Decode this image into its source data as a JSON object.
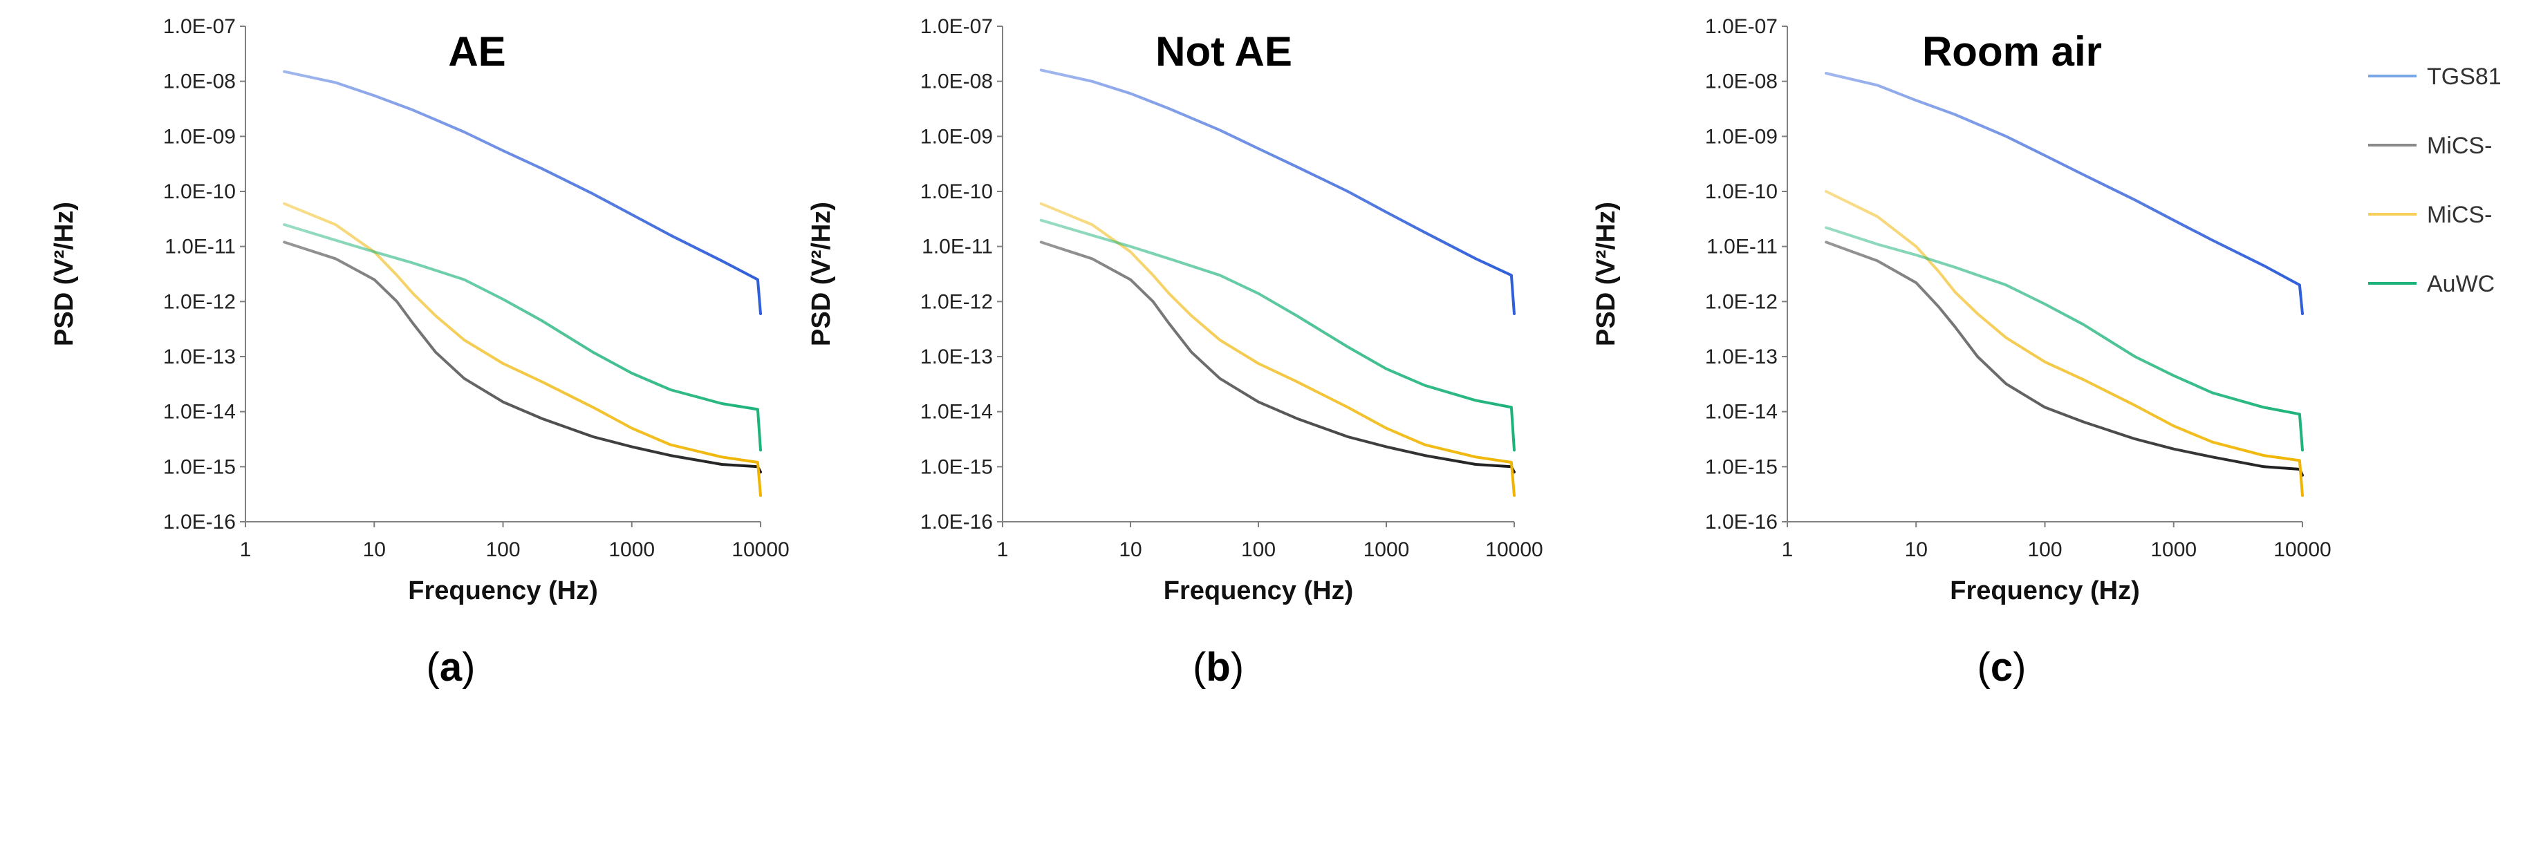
{
  "chart_data": [
    {
      "type": "line",
      "title": "AE",
      "caption": "a",
      "xlabel": "Frequency (Hz)",
      "ylabel": "PSD (V²/Hz)",
      "x_scale": "log",
      "y_scale": "log",
      "xlim": [
        1,
        10000
      ],
      "ylim": [
        1e-16,
        1e-07
      ],
      "x_ticks": [
        "1",
        "10",
        "100",
        "1000",
        "10000"
      ],
      "y_ticks": [
        "1.0E-16",
        "1.0E-15",
        "1.0E-14",
        "1.0E-13",
        "1.0E-12",
        "1.0E-11",
        "1.0E-10",
        "1.0E-09",
        "1.0E-08",
        "1.0E-07"
      ],
      "grid": false,
      "series": [
        {
          "name": "TGS81",
          "color": "#2f5fd9",
          "x": [
            2,
            5,
            10,
            20,
            50,
            100,
            200,
            500,
            1000,
            2000,
            5000,
            9500,
            10000
          ],
          "y": [
            1.5e-08,
            9.5e-09,
            5.5e-09,
            3e-09,
            1.2e-09,
            5.5e-10,
            2.6e-10,
            9e-11,
            3.8e-11,
            1.6e-11,
            5.5e-12,
            2.5e-12,
            6e-13
          ]
        },
        {
          "name": "MiCS-",
          "color": "#1a1a1a",
          "x": [
            2,
            5,
            10,
            15,
            20,
            30,
            50,
            100,
            200,
            500,
            1000,
            2000,
            5000,
            9500,
            10000
          ],
          "y": [
            1.2e-11,
            6e-12,
            2.5e-12,
            1e-12,
            4e-13,
            1.2e-13,
            4e-14,
            1.5e-14,
            7.5e-15,
            3.5e-15,
            2.3e-15,
            1.6e-15,
            1.1e-15,
            1e-15,
            8e-16
          ]
        },
        {
          "name": "MiCS-",
          "color": "#f0b400",
          "x": [
            2,
            5,
            10,
            15,
            20,
            30,
            50,
            100,
            200,
            500,
            1000,
            2000,
            5000,
            9500,
            10000
          ],
          "y": [
            6e-11,
            2.5e-11,
            8e-12,
            3e-12,
            1.4e-12,
            5.5e-13,
            2e-13,
            7.5e-14,
            3.5e-14,
            1.2e-14,
            5e-15,
            2.5e-15,
            1.5e-15,
            1.2e-15,
            3e-16
          ]
        },
        {
          "name": "AuWC",
          "color": "#1db37a",
          "x": [
            2,
            5,
            10,
            20,
            50,
            100,
            200,
            500,
            1000,
            2000,
            5000,
            9500,
            10000
          ],
          "y": [
            2.5e-11,
            1.3e-11,
            8e-12,
            5e-12,
            2.5e-12,
            1.1e-12,
            4.5e-13,
            1.2e-13,
            5e-14,
            2.5e-14,
            1.4e-14,
            1.1e-14,
            2e-15
          ]
        }
      ]
    },
    {
      "type": "line",
      "title": "Not AE",
      "caption": "b",
      "xlabel": "Frequency (Hz)",
      "ylabel": "PSD (V²/Hz)",
      "x_scale": "log",
      "y_scale": "log",
      "xlim": [
        1,
        10000
      ],
      "ylim": [
        1e-16,
        1e-07
      ],
      "x_ticks": [
        "1",
        "10",
        "100",
        "1000",
        "10000"
      ],
      "y_ticks": [
        "1.0E-16",
        "1.0E-15",
        "1.0E-14",
        "1.0E-13",
        "1.0E-12",
        "1.0E-11",
        "1.0E-10",
        "1.0E-09",
        "1.0E-08",
        "1.0E-07"
      ],
      "grid": false,
      "series": [
        {
          "name": "TGS81",
          "color": "#2f5fd9",
          "x": [
            2,
            5,
            10,
            20,
            50,
            100,
            200,
            500,
            1000,
            2000,
            5000,
            9500,
            10000
          ],
          "y": [
            1.6e-08,
            1e-08,
            6e-09,
            3.2e-09,
            1.3e-09,
            6e-10,
            2.8e-10,
            1e-10,
            4.2e-11,
            1.8e-11,
            6e-12,
            3e-12,
            6e-13
          ]
        },
        {
          "name": "MiCS-",
          "color": "#1a1a1a",
          "x": [
            2,
            5,
            10,
            15,
            20,
            30,
            50,
            100,
            200,
            500,
            1000,
            2000,
            5000,
            9500,
            10000
          ],
          "y": [
            1.2e-11,
            6e-12,
            2.5e-12,
            1e-12,
            4e-13,
            1.2e-13,
            4e-14,
            1.5e-14,
            7.5e-15,
            3.5e-15,
            2.3e-15,
            1.6e-15,
            1.1e-15,
            1e-15,
            8e-16
          ]
        },
        {
          "name": "MiCS-",
          "color": "#f0b400",
          "x": [
            2,
            5,
            10,
            15,
            20,
            30,
            50,
            100,
            200,
            500,
            1000,
            2000,
            5000,
            9500,
            10000
          ],
          "y": [
            6e-11,
            2.5e-11,
            8e-12,
            3e-12,
            1.4e-12,
            5.5e-13,
            2e-13,
            7.5e-14,
            3.5e-14,
            1.2e-14,
            5e-15,
            2.5e-15,
            1.5e-15,
            1.2e-15,
            3e-16
          ]
        },
        {
          "name": "AuWC",
          "color": "#1db37a",
          "x": [
            2,
            5,
            10,
            20,
            50,
            100,
            200,
            500,
            1000,
            2000,
            5000,
            9500,
            10000
          ],
          "y": [
            3e-11,
            1.6e-11,
            1e-11,
            6e-12,
            3e-12,
            1.4e-12,
            5.5e-13,
            1.5e-13,
            6e-14,
            3e-14,
            1.6e-14,
            1.2e-14,
            2e-15
          ]
        }
      ]
    },
    {
      "type": "line",
      "title": "Room air",
      "caption": "c",
      "xlabel": "Frequency (Hz)",
      "ylabel": "PSD (V²/Hz)",
      "x_scale": "log",
      "y_scale": "log",
      "xlim": [
        1,
        10000
      ],
      "ylim": [
        1e-16,
        1e-07
      ],
      "x_ticks": [
        "1",
        "10",
        "100",
        "1000",
        "10000"
      ],
      "y_ticks": [
        "1.0E-16",
        "1.0E-15",
        "1.0E-14",
        "1.0E-13",
        "1.0E-12",
        "1.0E-11",
        "1.0E-10",
        "1.0E-09",
        "1.0E-08",
        "1.0E-07"
      ],
      "grid": false,
      "series": [
        {
          "name": "TGS81",
          "color": "#2f5fd9",
          "x": [
            2,
            5,
            10,
            20,
            50,
            100,
            200,
            500,
            1000,
            2000,
            5000,
            9500,
            10000
          ],
          "y": [
            1.4e-08,
            8.5e-09,
            4.5e-09,
            2.5e-09,
            1e-09,
            4.5e-10,
            2e-10,
            7e-11,
            3e-11,
            1.3e-11,
            4.5e-12,
            2e-12,
            6e-13
          ]
        },
        {
          "name": "MiCS-",
          "color": "#1a1a1a",
          "x": [
            2,
            5,
            10,
            15,
            20,
            30,
            50,
            100,
            200,
            500,
            1000,
            2000,
            5000,
            9500,
            10000
          ],
          "y": [
            1.2e-11,
            5.5e-12,
            2.2e-12,
            8e-13,
            3.5e-13,
            1e-13,
            3.2e-14,
            1.2e-14,
            6.5e-15,
            3.2e-15,
            2.1e-15,
            1.5e-15,
            1e-15,
            9e-16,
            7e-16
          ]
        },
        {
          "name": "MiCS-",
          "color": "#f0b400",
          "x": [
            2,
            5,
            10,
            15,
            20,
            30,
            50,
            100,
            200,
            500,
            1000,
            2000,
            5000,
            9500,
            10000
          ],
          "y": [
            1e-10,
            3.5e-11,
            1e-11,
            3.5e-12,
            1.5e-12,
            6e-13,
            2.2e-13,
            8e-14,
            3.8e-14,
            1.3e-14,
            5.5e-15,
            2.8e-15,
            1.6e-15,
            1.3e-15,
            3e-16
          ]
        },
        {
          "name": "AuWC",
          "color": "#1db37a",
          "x": [
            2,
            5,
            10,
            20,
            50,
            100,
            200,
            500,
            1000,
            2000,
            5000,
            9500,
            10000
          ],
          "y": [
            2.2e-11,
            1.1e-11,
            7e-12,
            4.2e-12,
            2e-12,
            9e-13,
            3.8e-13,
            1e-13,
            4.5e-14,
            2.2e-14,
            1.2e-14,
            9e-15,
            2e-15
          ]
        }
      ]
    }
  ],
  "legend": {
    "placement": "right",
    "entries": [
      {
        "label": "TGS81",
        "color": "#7aa7e8"
      },
      {
        "label": "MiCS-",
        "color": "#8a8a8a"
      },
      {
        "label": "MiCS-",
        "color": "#f5cf5a"
      },
      {
        "label": "AuWC",
        "color": "#1db37a"
      }
    ]
  }
}
